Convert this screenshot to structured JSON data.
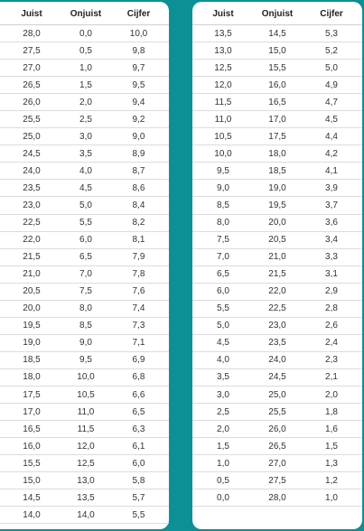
{
  "headers": {
    "juist": "Juist",
    "onjuist": "Onjuist",
    "cijfer": "Cijfer"
  },
  "left_table": [
    [
      "28,0",
      "0,0",
      "10,0"
    ],
    [
      "27,5",
      "0,5",
      "9,8"
    ],
    [
      "27,0",
      "1,0",
      "9,7"
    ],
    [
      "26,5",
      "1,5",
      "9,5"
    ],
    [
      "26,0",
      "2,0",
      "9,4"
    ],
    [
      "25,5",
      "2,5",
      "9,2"
    ],
    [
      "25,0",
      "3,0",
      "9,0"
    ],
    [
      "24,5",
      "3,5",
      "8,9"
    ],
    [
      "24,0",
      "4,0",
      "8,7"
    ],
    [
      "23,5",
      "4,5",
      "8,6"
    ],
    [
      "23,0",
      "5,0",
      "8,4"
    ],
    [
      "22,5",
      "5,5",
      "8,2"
    ],
    [
      "22,0",
      "6,0",
      "8,1"
    ],
    [
      "21,5",
      "6,5",
      "7,9"
    ],
    [
      "21,0",
      "7,0",
      "7,8"
    ],
    [
      "20,5",
      "7,5",
      "7,6"
    ],
    [
      "20,0",
      "8,0",
      "7,4"
    ],
    [
      "19,5",
      "8,5",
      "7,3"
    ],
    [
      "19,0",
      "9,0",
      "7,1"
    ],
    [
      "18,5",
      "9,5",
      "6,9"
    ],
    [
      "18,0",
      "10,0",
      "6,8"
    ],
    [
      "17,5",
      "10,5",
      "6,6"
    ],
    [
      "17,0",
      "11,0",
      "6,5"
    ],
    [
      "16,5",
      "11,5",
      "6,3"
    ],
    [
      "16,0",
      "12,0",
      "6,1"
    ],
    [
      "15,5",
      "12,5",
      "6,0"
    ],
    [
      "15,0",
      "13,0",
      "5,8"
    ],
    [
      "14,5",
      "13,5",
      "5,7"
    ],
    [
      "14,0",
      "14,0",
      "5,5"
    ]
  ],
  "right_table": [
    [
      "13,5",
      "14,5",
      "5,3"
    ],
    [
      "13,0",
      "15,0",
      "5,2"
    ],
    [
      "12,5",
      "15,5",
      "5,0"
    ],
    [
      "12,0",
      "16,0",
      "4,9"
    ],
    [
      "11,5",
      "16,5",
      "4,7"
    ],
    [
      "11,0",
      "17,0",
      "4,5"
    ],
    [
      "10,5",
      "17,5",
      "4,4"
    ],
    [
      "10,0",
      "18,0",
      "4,2"
    ],
    [
      "9,5",
      "18,5",
      "4,1"
    ],
    [
      "9,0",
      "19,0",
      "3,9"
    ],
    [
      "8,5",
      "19,5",
      "3,7"
    ],
    [
      "8,0",
      "20,0",
      "3,6"
    ],
    [
      "7,5",
      "20,5",
      "3,4"
    ],
    [
      "7,0",
      "21,0",
      "3,3"
    ],
    [
      "6,5",
      "21,5",
      "3,1"
    ],
    [
      "6,0",
      "22,0",
      "2,9"
    ],
    [
      "5,5",
      "22,5",
      "2,8"
    ],
    [
      "5,0",
      "23,0",
      "2,6"
    ],
    [
      "4,5",
      "23,5",
      "2,4"
    ],
    [
      "4,0",
      "24,0",
      "2,3"
    ],
    [
      "3,5",
      "24,5",
      "2,1"
    ],
    [
      "3,0",
      "25,0",
      "2,0"
    ],
    [
      "2,5",
      "25,5",
      "1,8"
    ],
    [
      "2,0",
      "26,0",
      "1,6"
    ],
    [
      "1,5",
      "26,5",
      "1,5"
    ],
    [
      "1,0",
      "27,0",
      "1,3"
    ],
    [
      "0,5",
      "27,5",
      "1,2"
    ],
    [
      "0,0",
      "28,0",
      "1,0"
    ]
  ]
}
